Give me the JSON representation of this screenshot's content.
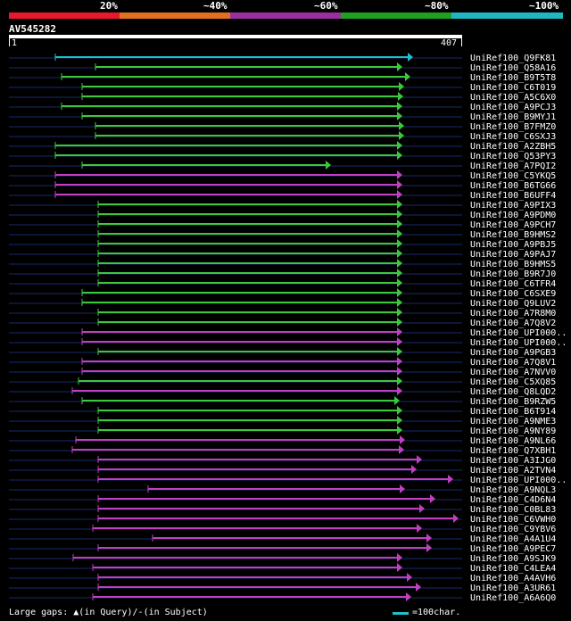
{
  "legend": {
    "labels": [
      "20%",
      "~40%",
      "~60%",
      "~80%",
      "~100%"
    ],
    "colors": [
      "#e8192c",
      "#e07020",
      "#9a2fa0",
      "#20a020",
      "#20b8c0"
    ]
  },
  "query": {
    "name": "AV545282",
    "start": "1",
    "end": "407"
  },
  "hits": [
    {
      "name": "UniRef100_Q9FK81",
      "color": "#20c0c8",
      "x1": 62,
      "x2": 463
    },
    {
      "name": "UniRef100_Q58A16",
      "color": "#3cc83c",
      "x1": 107,
      "x2": 451
    },
    {
      "name": "UniRef100_B9T5T8",
      "color": "#3cc83c",
      "x1": 69,
      "x2": 460
    },
    {
      "name": "UniRef100_C6T019",
      "color": "#3cc83c",
      "x1": 92,
      "x2": 453
    },
    {
      "name": "UniRef100_A5C6X0",
      "color": "#3cc83c",
      "x1": 92,
      "x2": 452
    },
    {
      "name": "UniRef100_A9PCJ3",
      "color": "#3cc83c",
      "x1": 69,
      "x2": 451
    },
    {
      "name": "UniRef100_B9MYJ1",
      "color": "#3cc83c",
      "x1": 92,
      "x2": 451
    },
    {
      "name": "UniRef100_B7FMZ0",
      "color": "#3cc83c",
      "x1": 107,
      "x2": 453
    },
    {
      "name": "UniRef100_C6SXJ3",
      "color": "#3cc83c",
      "x1": 107,
      "x2": 453
    },
    {
      "name": "UniRef100_A2ZBH5",
      "color": "#3cc83c",
      "x1": 62,
      "x2": 451
    },
    {
      "name": "UniRef100_Q53PY3",
      "color": "#3cc83c",
      "x1": 62,
      "x2": 451
    },
    {
      "name": "UniRef100_A7PQI2",
      "color": "#3cc83c",
      "x1": 92,
      "x2": 371
    },
    {
      "name": "UniRef100_C5YKQ5",
      "color": "#c040c0",
      "x1": 62,
      "x2": 451
    },
    {
      "name": "UniRef100_B6TG66",
      "color": "#c040c0",
      "x1": 62,
      "x2": 451
    },
    {
      "name": "UniRef100_B6UFF4",
      "color": "#c040c0",
      "x1": 62,
      "x2": 451
    },
    {
      "name": "UniRef100_A9PIX3",
      "color": "#3cc83c",
      "x1": 110,
      "x2": 451
    },
    {
      "name": "UniRef100_A9PDM0",
      "color": "#3cc83c",
      "x1": 110,
      "x2": 451
    },
    {
      "name": "UniRef100_A9PCH7",
      "color": "#3cc83c",
      "x1": 110,
      "x2": 451
    },
    {
      "name": "UniRef100_B9HMS2",
      "color": "#3cc83c",
      "x1": 110,
      "x2": 451
    },
    {
      "name": "UniRef100_A9PBJ5",
      "color": "#3cc83c",
      "x1": 110,
      "x2": 451
    },
    {
      "name": "UniRef100_A9PAJ7",
      "color": "#3cc83c",
      "x1": 110,
      "x2": 451
    },
    {
      "name": "UniRef100_B9HMS5",
      "color": "#3cc83c",
      "x1": 110,
      "x2": 451
    },
    {
      "name": "UniRef100_B9R7J0",
      "color": "#3cc83c",
      "x1": 110,
      "x2": 451
    },
    {
      "name": "UniRef100_C6TFR4",
      "color": "#3cc83c",
      "x1": 110,
      "x2": 451
    },
    {
      "name": "UniRef100_C6SXE9",
      "color": "#3cc83c",
      "x1": 92,
      "x2": 451
    },
    {
      "name": "UniRef100_Q9LUV2",
      "color": "#3cc83c",
      "x1": 92,
      "x2": 451
    },
    {
      "name": "UniRef100_A7R8M0",
      "color": "#3cc83c",
      "x1": 110,
      "x2": 451
    },
    {
      "name": "UniRef100_A7Q8V2",
      "color": "#3cc83c",
      "x1": 110,
      "x2": 451
    },
    {
      "name": "UniRef100_UPI000..",
      "color": "#c040c0",
      "x1": 92,
      "x2": 451
    },
    {
      "name": "UniRef100_UPI000..",
      "color": "#c040c0",
      "x1": 92,
      "x2": 451
    },
    {
      "name": "UniRef100_A9PGB3",
      "color": "#3cc83c",
      "x1": 110,
      "x2": 451
    },
    {
      "name": "UniRef100_A7Q8V1",
      "color": "#c040c0",
      "x1": 92,
      "x2": 451
    },
    {
      "name": "UniRef100_A7NVV0",
      "color": "#c040c0",
      "x1": 92,
      "x2": 451
    },
    {
      "name": "UniRef100_C5XQ85",
      "color": "#3cc83c",
      "x1": 88,
      "x2": 451
    },
    {
      "name": "UniRef100_Q8LQD2",
      "color": "#c040c0",
      "x1": 81,
      "x2": 451
    },
    {
      "name": "UniRef100_B9RZW5",
      "color": "#3cc83c",
      "x1": 92,
      "x2": 448
    },
    {
      "name": "UniRef100_B6T914",
      "color": "#3cc83c",
      "x1": 110,
      "x2": 451
    },
    {
      "name": "UniRef100_A9NME3",
      "color": "#3cc83c",
      "x1": 110,
      "x2": 451
    },
    {
      "name": "UniRef100_A9NY89",
      "color": "#3cc83c",
      "x1": 110,
      "x2": 451
    },
    {
      "name": "UniRef100_A9NL66",
      "color": "#c040c0",
      "x1": 85,
      "x2": 454
    },
    {
      "name": "UniRef100_Q7XBH1",
      "color": "#c040c0",
      "x1": 81,
      "x2": 453
    },
    {
      "name": "UniRef100_A3IJG0",
      "color": "#c040c0",
      "x1": 110,
      "x2": 473
    },
    {
      "name": "UniRef100_A2TVN4",
      "color": "#c040c0",
      "x1": 110,
      "x2": 467
    },
    {
      "name": "UniRef100_UPI000..",
      "color": "#c040c0",
      "x1": 110,
      "x2": 508
    },
    {
      "name": "UniRef100_A9NQL3",
      "color": "#c040c0",
      "x1": 166,
      "x2": 454
    },
    {
      "name": "UniRef100_C4D6N4",
      "color": "#c040c0",
      "x1": 110,
      "x2": 488
    },
    {
      "name": "UniRef100_C0BL83",
      "color": "#c040c0",
      "x1": 110,
      "x2": 476
    },
    {
      "name": "UniRef100_C6VWH0",
      "color": "#c040c0",
      "x1": 110,
      "x2": 514
    },
    {
      "name": "UniRef100_C9YBV6",
      "color": "#c040c0",
      "x1": 104,
      "x2": 473
    },
    {
      "name": "UniRef100_A4A1U4",
      "color": "#c040c0",
      "x1": 171,
      "x2": 484
    },
    {
      "name": "UniRef100_A9PEC7",
      "color": "#c040c0",
      "x1": 110,
      "x2": 484
    },
    {
      "name": "UniRef100_A9SJK9",
      "color": "#c040c0",
      "x1": 82,
      "x2": 451
    },
    {
      "name": "UniRef100_C4LEA4",
      "color": "#c040c0",
      "x1": 104,
      "x2": 451
    },
    {
      "name": "UniRef100_A4AVH6",
      "color": "#c040c0",
      "x1": 110,
      "x2": 462
    },
    {
      "name": "UniRef100_A3UR61",
      "color": "#c040c0",
      "x1": 110,
      "x2": 472
    },
    {
      "name": "UniRef100_A6A6Q0",
      "color": "#c040c0",
      "x1": 104,
      "x2": 461
    }
  ],
  "footer": {
    "gaps": "Large gaps:",
    "query_note": "(in Query)/",
    "dash": "-",
    "subject_note": "(in Subject)",
    "scale": "=100char."
  }
}
